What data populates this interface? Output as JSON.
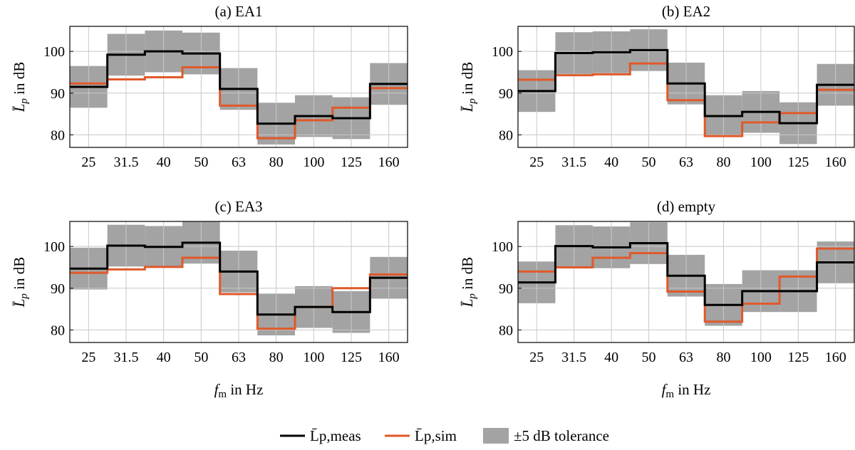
{
  "figure": {
    "legend": {
      "meas": "L̄p,meas",
      "sim": "L̄p,sim",
      "tolerance": "±5 dB tolerance"
    }
  },
  "colors": {
    "meas": "#000000",
    "sim": "#e0592a",
    "band": "#a3a3a3",
    "grid": "#c8c8c8"
  },
  "chart_data": [
    {
      "type": "line",
      "title": "(a) EA1",
      "xlabel": "",
      "ylabel": "L̄p in dB",
      "categories": [
        "25",
        "31.5",
        "40",
        "50",
        "63",
        "80",
        "100",
        "125",
        "160"
      ],
      "ylim": [
        77,
        106
      ],
      "yticks": [
        80,
        90,
        100
      ],
      "series": [
        {
          "name": "L̄p,meas",
          "values": [
            91.5,
            99.2,
            100.0,
            99.5,
            91.0,
            82.7,
            84.5,
            84.0,
            92.2
          ]
        },
        {
          "name": "L̄p,sim",
          "values": [
            92.3,
            93.3,
            93.8,
            96.2,
            87.0,
            79.2,
            83.5,
            86.5,
            91.2
          ]
        }
      ]
    },
    {
      "type": "line",
      "title": "(b) EA2",
      "xlabel": "",
      "ylabel": "L̄p in dB",
      "categories": [
        "25",
        "31.5",
        "40",
        "50",
        "63",
        "80",
        "100",
        "125",
        "160"
      ],
      "ylim": [
        77,
        106
      ],
      "yticks": [
        80,
        90,
        100
      ],
      "series": [
        {
          "name": "L̄p,meas",
          "values": [
            90.5,
            99.6,
            99.8,
            100.3,
            92.3,
            84.5,
            85.5,
            82.8,
            92.0
          ]
        },
        {
          "name": "L̄p,sim",
          "values": [
            93.2,
            94.3,
            94.5,
            97.1,
            88.3,
            79.7,
            83.0,
            85.2,
            90.8
          ]
        }
      ]
    },
    {
      "type": "line",
      "title": "(c) EA3",
      "xlabel": "fm in Hz",
      "ylabel": "L̄p in dB",
      "categories": [
        "25",
        "31.5",
        "40",
        "50",
        "63",
        "80",
        "100",
        "125",
        "160"
      ],
      "ylim": [
        77,
        106
      ],
      "yticks": [
        80,
        90,
        100
      ],
      "series": [
        {
          "name": "L̄p,meas",
          "values": [
            94.7,
            100.2,
            99.9,
            100.9,
            94.0,
            83.7,
            85.5,
            84.3,
            92.5
          ]
        },
        {
          "name": "L̄p,sim",
          "values": [
            93.7,
            94.5,
            95.1,
            97.3,
            88.6,
            80.3,
            85.5,
            90.0,
            93.3
          ]
        }
      ]
    },
    {
      "type": "line",
      "title": "(d) empty",
      "xlabel": "fm in Hz",
      "ylabel": "L̄p in dB",
      "categories": [
        "25",
        "31.5",
        "40",
        "50",
        "63",
        "80",
        "100",
        "125",
        "160"
      ],
      "ylim": [
        77,
        106
      ],
      "yticks": [
        80,
        90,
        100
      ],
      "series": [
        {
          "name": "L̄p,meas",
          "values": [
            91.4,
            100.1,
            99.8,
            100.8,
            93.0,
            86.0,
            89.3,
            89.3,
            96.2
          ]
        },
        {
          "name": "L̄p,sim",
          "values": [
            94.0,
            95.0,
            97.3,
            98.4,
            89.2,
            82.0,
            86.3,
            92.8,
            99.5
          ]
        }
      ]
    }
  ]
}
